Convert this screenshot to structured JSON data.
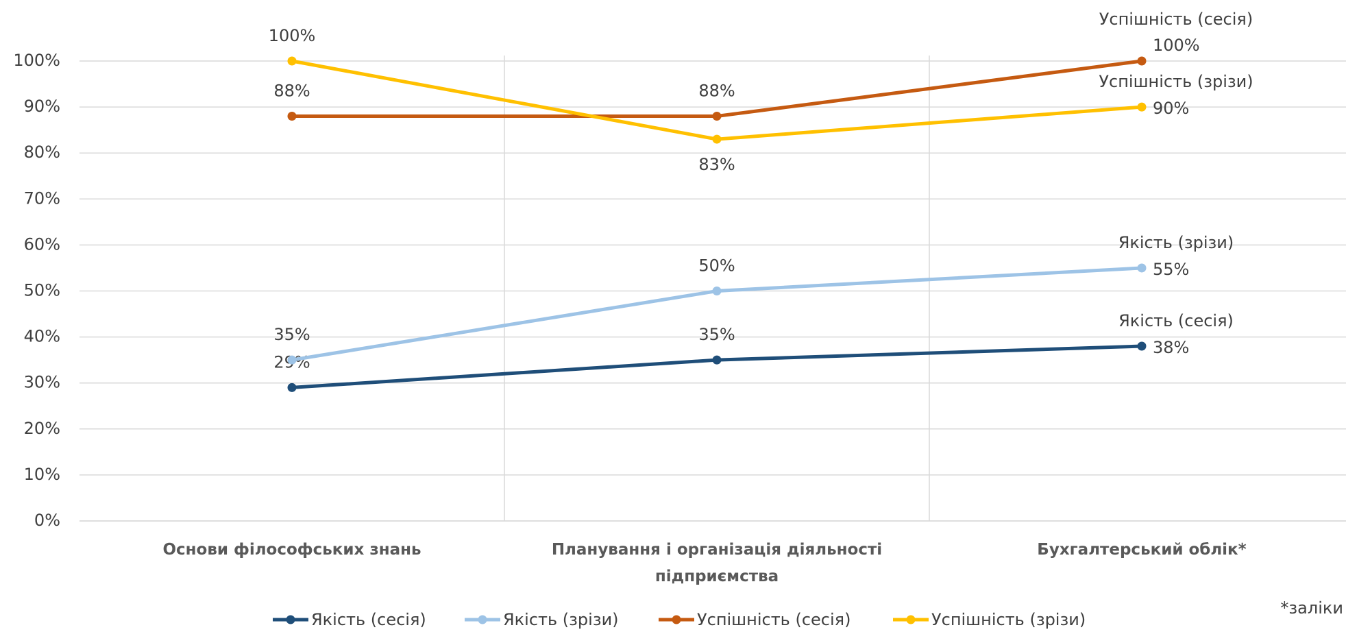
{
  "chart_data": {
    "type": "line",
    "categories": [
      "Основи філософських знань",
      "Планування і організація діяльності підприємства",
      "Бухгалтерський облік*"
    ],
    "series": [
      {
        "name": "Якість (сесія)",
        "color": "#1f4e79",
        "values": [
          29,
          35,
          38
        ],
        "value_labels": [
          "29%",
          "35%",
          "38%"
        ]
      },
      {
        "name": "Якість (зрізи)",
        "color": "#9dc3e6",
        "values": [
          35,
          50,
          55
        ],
        "value_labels": [
          "35%",
          "50%",
          "55%"
        ]
      },
      {
        "name": "Успішність (сесія)",
        "color": "#c55a11",
        "values": [
          88,
          88,
          100
        ],
        "value_labels": [
          "88%",
          "88%",
          "100%"
        ]
      },
      {
        "name": "Успішність (зрізи)",
        "color": "#ffc000",
        "values": [
          100,
          83,
          90
        ],
        "value_labels": [
          "100%",
          "83%",
          "90%"
        ]
      }
    ],
    "ylim": [
      0,
      100
    ],
    "yticks": [
      {
        "value": 0,
        "label": "0%"
      },
      {
        "value": 10,
        "label": "10%"
      },
      {
        "value": 20,
        "label": "20%"
      },
      {
        "value": 30,
        "label": "30%"
      },
      {
        "value": 40,
        "label": "40%"
      },
      {
        "value": 50,
        "label": "50%"
      },
      {
        "value": 60,
        "label": "60%"
      },
      {
        "value": 70,
        "label": "70%"
      },
      {
        "value": 80,
        "label": "80%"
      },
      {
        "value": 90,
        "label": "90%"
      },
      {
        "value": 100,
        "label": "100%"
      }
    ],
    "grid": true,
    "legend": "bottom",
    "annotation": "*заліки"
  }
}
